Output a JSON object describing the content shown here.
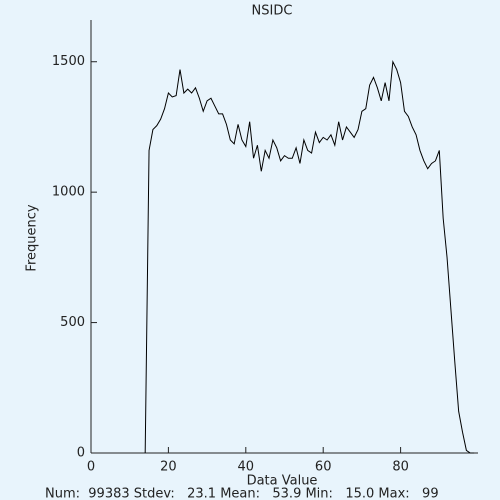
{
  "chart_data": {
    "type": "line",
    "title": "NSIDC",
    "xlabel": "Data Value",
    "ylabel": "Frequency",
    "footer": "Num:  99383 Stdev:   23.1 Mean:   53.9 Min:   15.0 Max:   99",
    "x": [
      14,
      15,
      16,
      17,
      18,
      19,
      20,
      21,
      22,
      23,
      24,
      25,
      26,
      27,
      28,
      29,
      30,
      31,
      32,
      33,
      34,
      35,
      36,
      37,
      38,
      39,
      40,
      41,
      42,
      43,
      44,
      45,
      46,
      47,
      48,
      49,
      50,
      51,
      52,
      53,
      54,
      55,
      56,
      57,
      58,
      59,
      60,
      61,
      62,
      63,
      64,
      65,
      66,
      67,
      68,
      69,
      70,
      71,
      72,
      73,
      74,
      75,
      76,
      77,
      78,
      79,
      80,
      81,
      82,
      83,
      84,
      85,
      86,
      87,
      88,
      89,
      90,
      91,
      92,
      93,
      94,
      95,
      96,
      97,
      98,
      99
    ],
    "series": [
      {
        "color": "#000000",
        "values": [
          0,
          1160,
          1240,
          1255,
          1280,
          1320,
          1380,
          1365,
          1370,
          1470,
          1380,
          1395,
          1380,
          1400,
          1360,
          1310,
          1350,
          1360,
          1330,
          1300,
          1300,
          1260,
          1200,
          1185,
          1260,
          1200,
          1175,
          1270,
          1130,
          1180,
          1080,
          1160,
          1130,
          1200,
          1170,
          1120,
          1140,
          1130,
          1130,
          1170,
          1110,
          1200,
          1160,
          1150,
          1230,
          1190,
          1210,
          1200,
          1220,
          1180,
          1270,
          1200,
          1250,
          1230,
          1210,
          1240,
          1310,
          1320,
          1410,
          1440,
          1400,
          1350,
          1420,
          1350,
          1500,
          1470,
          1420,
          1310,
          1290,
          1250,
          1220,
          1160,
          1120,
          1090,
          1110,
          1120,
          1160,
          900,
          750,
          550,
          350,
          160,
          80,
          10,
          0,
          0
        ]
      }
    ],
    "xlim": [
      0,
      100
    ],
    "xticks": [
      0,
      20,
      40,
      60,
      80
    ],
    "ylim": [
      0,
      1660
    ],
    "yticks": [
      0,
      500,
      1000,
      1500
    ]
  }
}
